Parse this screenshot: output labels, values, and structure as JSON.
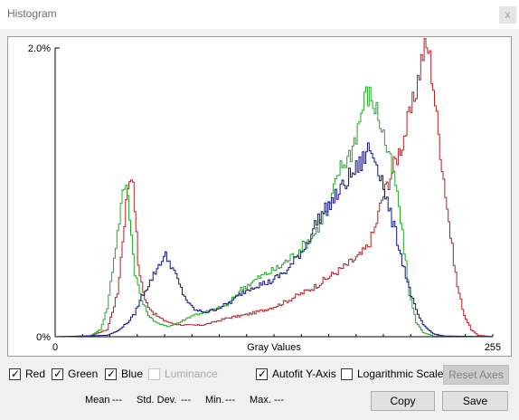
{
  "window": {
    "title": "Histogram",
    "close_glyph": "x"
  },
  "chart_data": {
    "type": "line",
    "title": "",
    "xlabel": "Gray Values",
    "ylabel": "",
    "xlim": [
      0,
      255
    ],
    "ylim": [
      0,
      2.0
    ],
    "x_tick_labels": [
      "0",
      "255"
    ],
    "y_tick_labels": [
      "0%",
      "2.0%"
    ],
    "grid": false,
    "series": [
      {
        "name": "Red",
        "color": "#b02020",
        "points": [
          [
            0,
            0
          ],
          [
            20,
            0.005
          ],
          [
            30,
            0.05
          ],
          [
            36,
            0.3
          ],
          [
            40,
            0.8
          ],
          [
            42,
            1.05
          ],
          [
            44,
            1.15
          ],
          [
            46,
            0.9
          ],
          [
            48,
            0.5
          ],
          [
            52,
            0.25
          ],
          [
            57,
            0.16
          ],
          [
            62,
            0.12
          ],
          [
            68,
            0.09
          ],
          [
            75,
            0.08
          ],
          [
            85,
            0.08
          ],
          [
            92,
            0.1
          ],
          [
            100,
            0.13
          ],
          [
            110,
            0.15
          ],
          [
            120,
            0.18
          ],
          [
            130,
            0.22
          ],
          [
            140,
            0.28
          ],
          [
            150,
            0.34
          ],
          [
            160,
            0.42
          ],
          [
            170,
            0.5
          ],
          [
            178,
            0.57
          ],
          [
            182,
            0.63
          ],
          [
            186,
            0.75
          ],
          [
            190,
            0.95
          ],
          [
            196,
            1.15
          ],
          [
            202,
            1.35
          ],
          [
            208,
            1.6
          ],
          [
            212,
            1.85
          ],
          [
            214,
            1.97
          ],
          [
            217,
            2.0
          ],
          [
            220,
            1.75
          ],
          [
            222,
            1.5
          ],
          [
            226,
            1.1
          ],
          [
            230,
            0.7
          ],
          [
            234,
            0.35
          ],
          [
            238,
            0.15
          ],
          [
            242,
            0.05
          ],
          [
            246,
            0.01
          ],
          [
            255,
            0
          ]
        ]
      },
      {
        "name": "Green",
        "color": "#22aa22",
        "points": [
          [
            0,
            0
          ],
          [
            20,
            0.005
          ],
          [
            26,
            0.05
          ],
          [
            30,
            0.2
          ],
          [
            34,
            0.55
          ],
          [
            38,
            0.9
          ],
          [
            40,
            1.05
          ],
          [
            42,
            1.0
          ],
          [
            44,
            0.7
          ],
          [
            46,
            0.45
          ],
          [
            50,
            0.25
          ],
          [
            55,
            0.13
          ],
          [
            60,
            0.09
          ],
          [
            65,
            0.07
          ],
          [
            72,
            0.1
          ],
          [
            80,
            0.15
          ],
          [
            90,
            0.18
          ],
          [
            100,
            0.22
          ],
          [
            108,
            0.33
          ],
          [
            120,
            0.42
          ],
          [
            130,
            0.48
          ],
          [
            140,
            0.58
          ],
          [
            150,
            0.7
          ],
          [
            160,
            0.92
          ],
          [
            165,
            1.15
          ],
          [
            172,
            1.28
          ],
          [
            177,
            1.5
          ],
          [
            180,
            1.65
          ],
          [
            182,
            1.68
          ],
          [
            186,
            1.6
          ],
          [
            190,
            1.45
          ],
          [
            194,
            1.25
          ],
          [
            198,
            1.05
          ],
          [
            200,
            0.9
          ],
          [
            203,
            0.6
          ],
          [
            206,
            0.3
          ],
          [
            210,
            0.1
          ],
          [
            214,
            0.03
          ],
          [
            220,
            0.005
          ],
          [
            255,
            0
          ]
        ]
      },
      {
        "name": "Blue",
        "color": "#101080",
        "points": [
          [
            0,
            0
          ],
          [
            30,
            0.01
          ],
          [
            36,
            0.04
          ],
          [
            42,
            0.1
          ],
          [
            46,
            0.16
          ],
          [
            50,
            0.28
          ],
          [
            54,
            0.36
          ],
          [
            58,
            0.45
          ],
          [
            61,
            0.52
          ],
          [
            64,
            0.56
          ],
          [
            67,
            0.5
          ],
          [
            70,
            0.42
          ],
          [
            74,
            0.3
          ],
          [
            78,
            0.22
          ],
          [
            82,
            0.18
          ],
          [
            88,
            0.17
          ],
          [
            95,
            0.2
          ],
          [
            102,
            0.24
          ],
          [
            108,
            0.3
          ],
          [
            115,
            0.35
          ],
          [
            125,
            0.38
          ],
          [
            135,
            0.46
          ],
          [
            145,
            0.62
          ],
          [
            153,
            0.82
          ],
          [
            160,
            0.92
          ],
          [
            165,
            1.0
          ],
          [
            172,
            1.12
          ],
          [
            178,
            1.2
          ],
          [
            182,
            1.3
          ],
          [
            185,
            1.26
          ],
          [
            188,
            1.18
          ],
          [
            191,
            1.05
          ],
          [
            194,
            0.88
          ],
          [
            198,
            0.72
          ],
          [
            202,
            0.52
          ],
          [
            206,
            0.33
          ],
          [
            210,
            0.18
          ],
          [
            214,
            0.08
          ],
          [
            220,
            0.02
          ],
          [
            226,
            0.005
          ],
          [
            255,
            0
          ]
        ]
      }
    ]
  },
  "controls": {
    "checkboxes": [
      {
        "label": "Red",
        "checked": true,
        "enabled": true
      },
      {
        "label": "Green",
        "checked": true,
        "enabled": true
      },
      {
        "label": "Blue",
        "checked": true,
        "enabled": true
      },
      {
        "label": "Luminance",
        "checked": false,
        "enabled": false
      },
      {
        "label": "Autofit Y-Axis",
        "checked": true,
        "enabled": true
      },
      {
        "label": "Logarithmic Scale",
        "checked": false,
        "enabled": true
      }
    ],
    "reset_axes_label": "Reset Axes",
    "copy_label": "Copy",
    "save_label": "Save"
  },
  "stats": {
    "mean_label": "Mean",
    "mean_value": "---",
    "std_label": "Std. Dev.",
    "std_value": "---",
    "min_label": "Min.",
    "min_value": "---",
    "max_label": "Max.",
    "max_value": "---"
  }
}
